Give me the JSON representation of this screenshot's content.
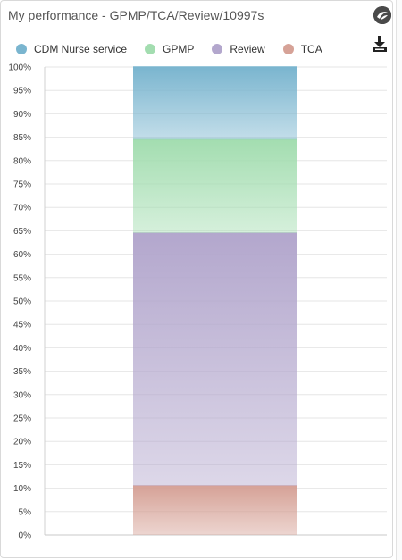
{
  "header": {
    "title": "My performance - GPMP/TCA/Review/10997s"
  },
  "icons": {
    "app": "app-logo-icon",
    "download": "download-icon"
  },
  "colors": {
    "cdm": "#7ab5cf",
    "gpmp": "#a3ddb0",
    "review": "#b3a7cd",
    "tca": "#d6a297"
  },
  "chart_data": {
    "type": "bar",
    "stacked": true,
    "percent": true,
    "categories": [
      ""
    ],
    "series": [
      {
        "name": "TCA",
        "values": [
          10.5
        ],
        "color": "#d6a297"
      },
      {
        "name": "Review",
        "values": [
          54
        ],
        "color": "#b3a7cd"
      },
      {
        "name": "GPMP",
        "values": [
          20
        ],
        "color": "#a3ddb0"
      },
      {
        "name": "CDM Nurse service",
        "values": [
          15.5
        ],
        "color": "#7ab5cf"
      }
    ],
    "legend": [
      "CDM Nurse service",
      "GPMP",
      "Review",
      "TCA"
    ],
    "legend_position": "top-left",
    "ylim": [
      0,
      100
    ],
    "yticks": [
      "0%",
      "5%",
      "10%",
      "15%",
      "20%",
      "25%",
      "30%",
      "35%",
      "40%",
      "45%",
      "50%",
      "55%",
      "60%",
      "65%",
      "70%",
      "75%",
      "80%",
      "85%",
      "90%",
      "95%",
      "100%"
    ],
    "grid": true
  }
}
